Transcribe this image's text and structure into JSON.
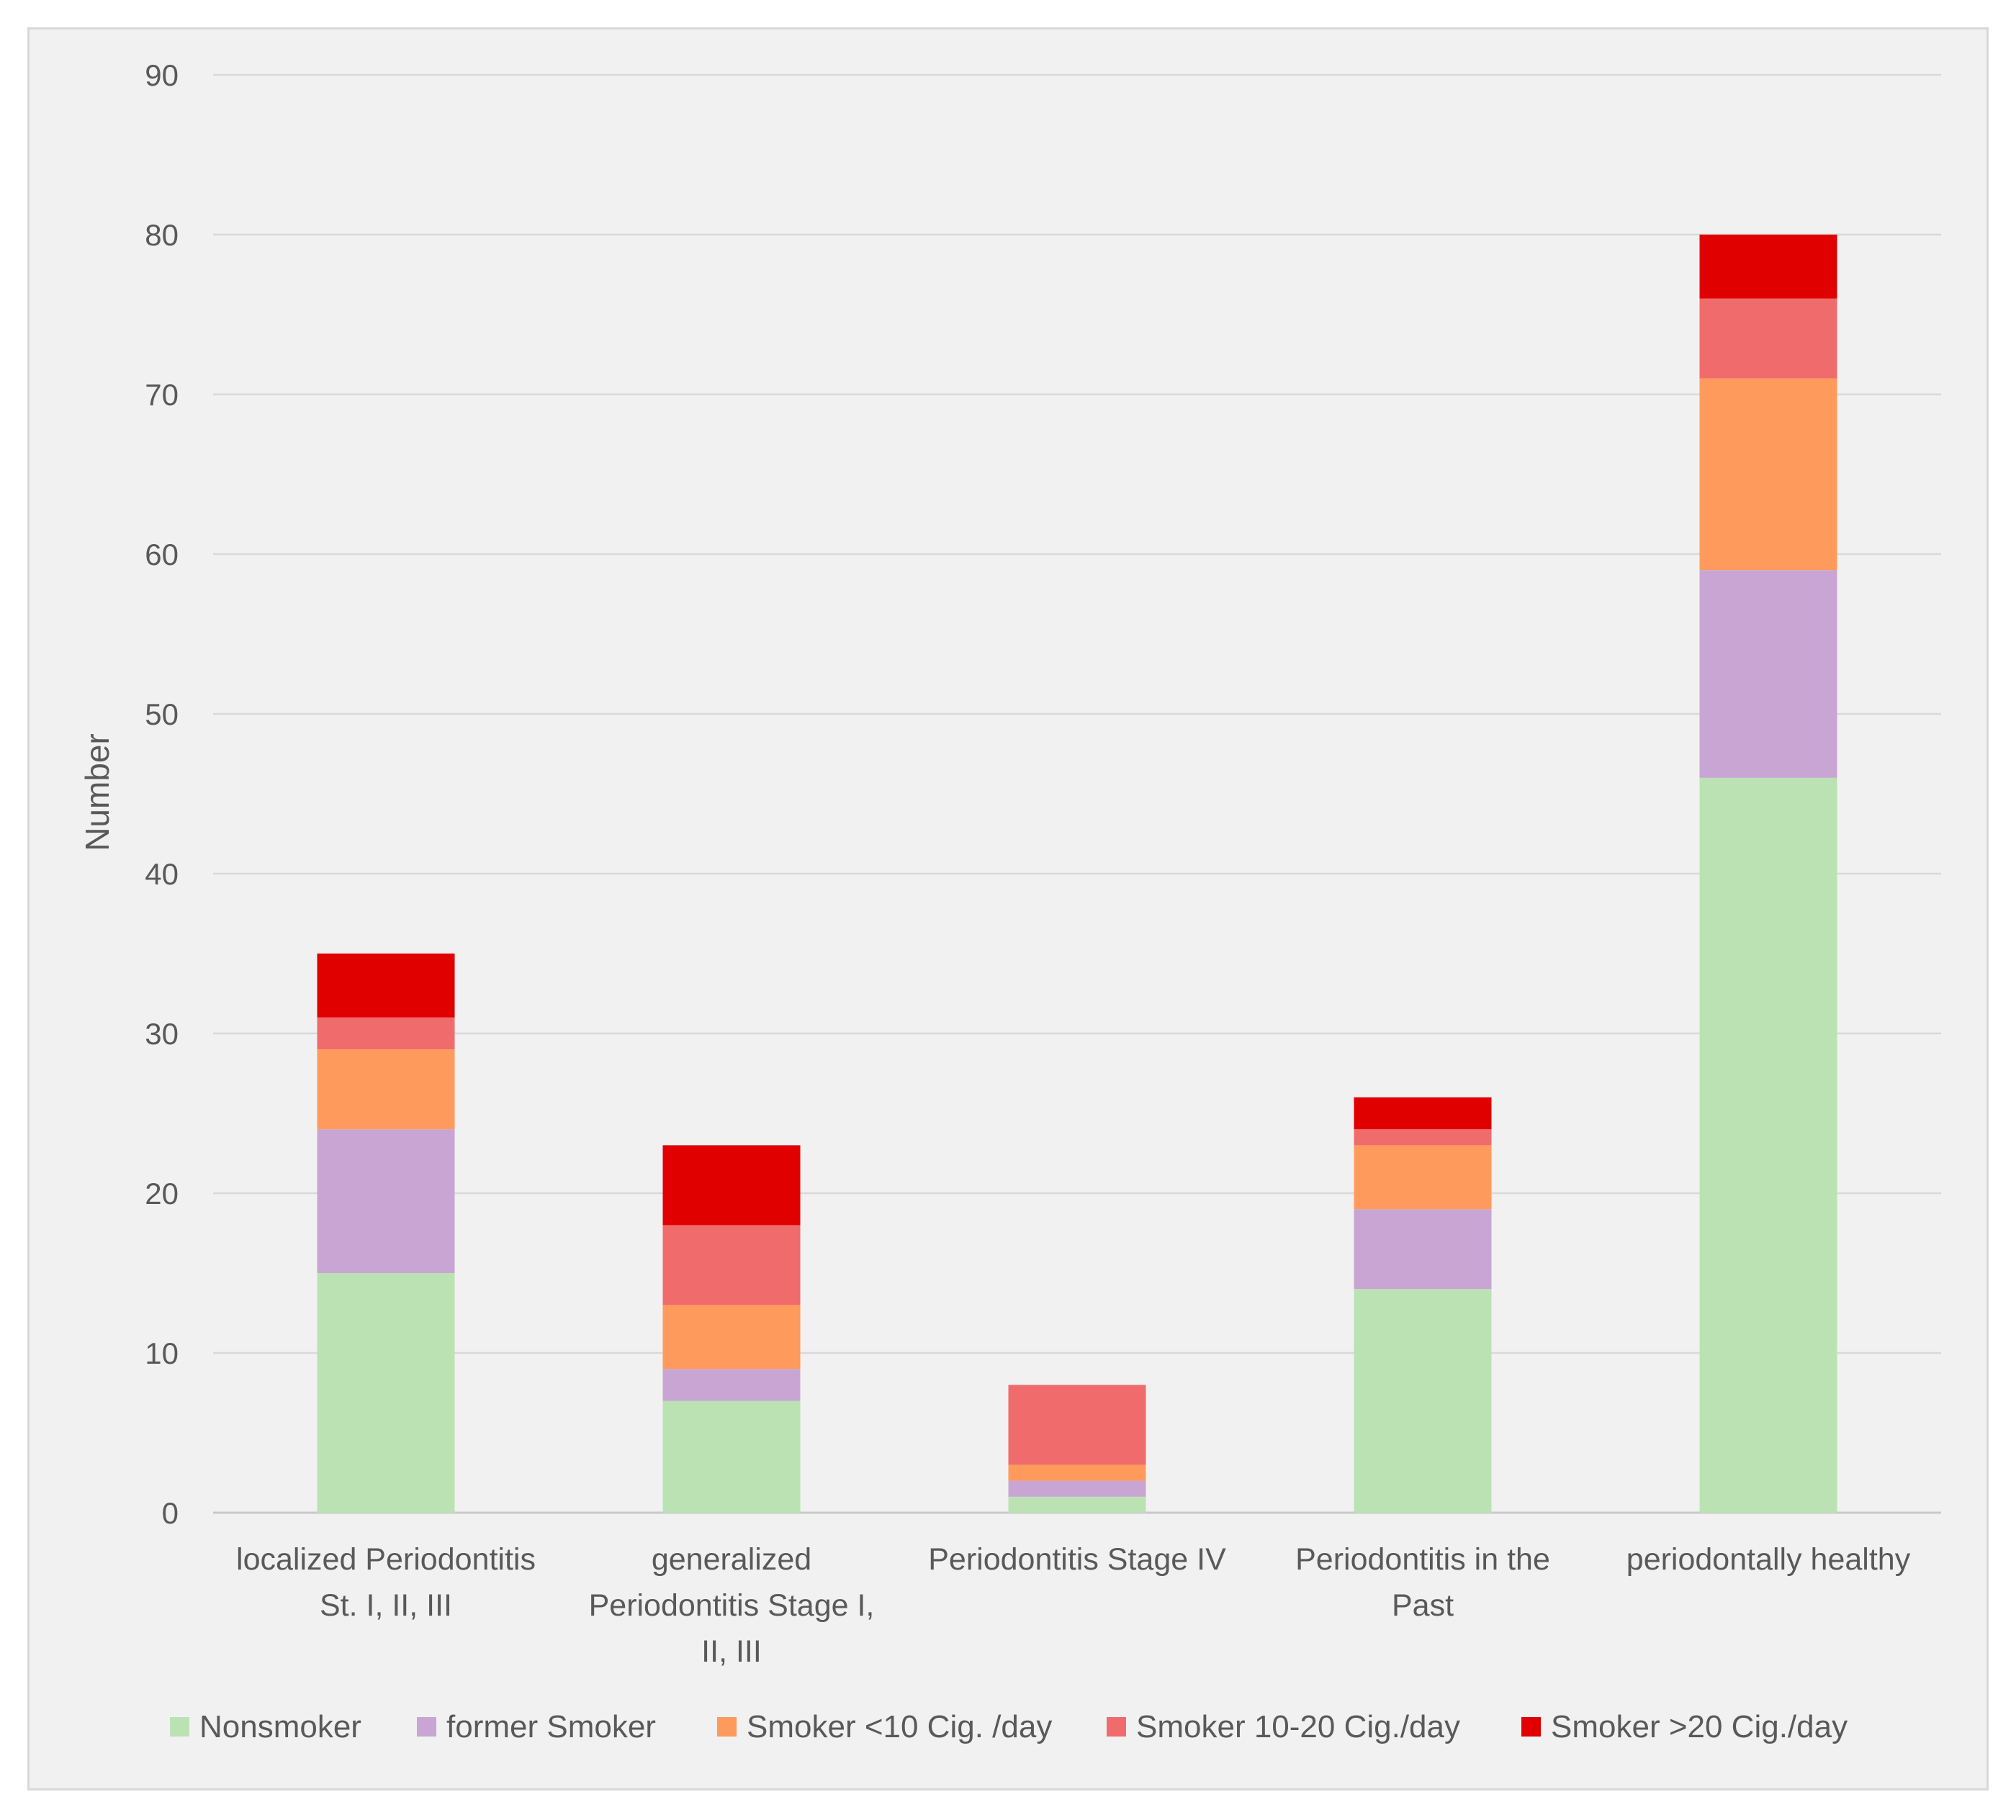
{
  "chart_data": {
    "type": "bar",
    "stacked": true,
    "title": "",
    "xlabel": "",
    "ylabel": "Number",
    "ylim": [
      0,
      90
    ],
    "yticks": [
      0,
      10,
      20,
      30,
      40,
      50,
      60,
      70,
      80,
      90
    ],
    "grid": true,
    "legend_position": "bottom",
    "categories": [
      [
        "localized Periodontitis",
        "St. I, II, III"
      ],
      [
        "generalized",
        "Periodontitis Stage I,",
        "II, III"
      ],
      [
        "Periodontitis Stage IV"
      ],
      [
        "Periodontitis in the",
        "Past"
      ],
      [
        "periodontally healthy"
      ]
    ],
    "series": [
      {
        "name": "Nonsmoker",
        "color": "#bbe2b3",
        "values": [
          15,
          7,
          1,
          14,
          46
        ]
      },
      {
        "name": "former Smoker",
        "color": "#c9a5d3",
        "values": [
          9,
          2,
          1,
          5,
          13
        ]
      },
      {
        "name": "Smoker <10 Cig. /day",
        "color": "#fe9a5c",
        "values": [
          5,
          4,
          1,
          4,
          12
        ]
      },
      {
        "name": "Smoker 10-20 Cig./day",
        "color": "#f06b6b",
        "values": [
          2,
          5,
          5,
          1,
          5
        ]
      },
      {
        "name": "Smoker >20 Cig./day",
        "color": "#e00000",
        "values": [
          4,
          5,
          0,
          2,
          4
        ]
      }
    ]
  }
}
